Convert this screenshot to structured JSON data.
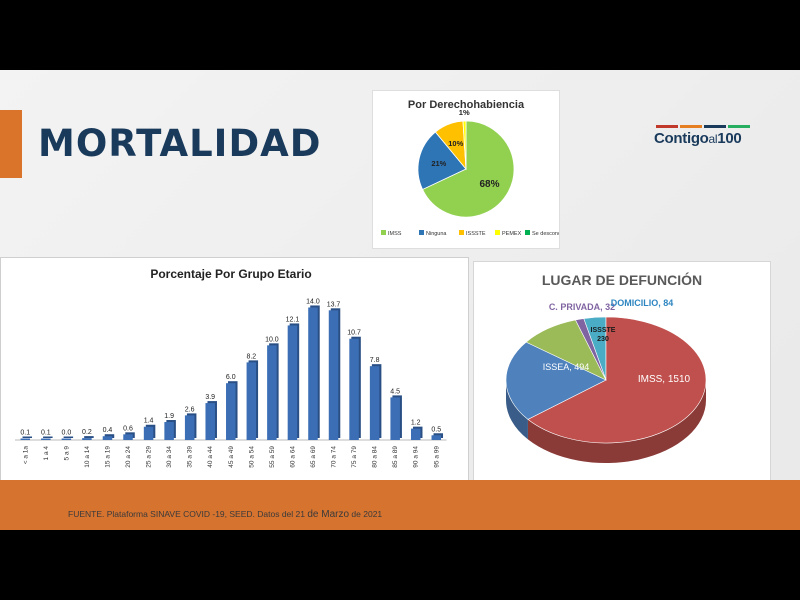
{
  "slide": {
    "title": "MORTALIDAD",
    "logo": {
      "part1": "Contigo",
      "part2": "al",
      "part3": "100",
      "bar_colors": [
        "#c0392b",
        "#e67e22",
        "#1a3a5c",
        "#27ae60",
        "#2e86c1"
      ]
    },
    "source": {
      "part1": "FUENTE. Plataforma SINAVE COVID -19, SEED. Datos del 21",
      "part2": "de Marzo",
      "part3": "de 2021"
    },
    "colors": {
      "accent": "#d9742a",
      "title": "#1a3a5c",
      "footer": "#d6732f"
    }
  },
  "chart_data": [
    {
      "type": "pie",
      "title": "Por Derechohabiencia",
      "categories": [
        "IMSS",
        "Ninguna",
        "ISSSTE",
        "PEMEX",
        "Se desconoce"
      ],
      "values": [
        68,
        21,
        10,
        1,
        0
      ],
      "labels": [
        "68%",
        "21%",
        "10%",
        "1%",
        ""
      ],
      "colors": [
        "#92d050",
        "#2e75b6",
        "#ffc000",
        "#ffff00",
        "#00b050"
      ],
      "legend_position": "bottom"
    },
    {
      "type": "bar",
      "title": "Porcentaje Por Grupo Etario",
      "categories": [
        "< a 1a",
        "1 a 4",
        "5 a 9",
        "10 a 14",
        "15 a 19",
        "20 a 24",
        "25 a 29",
        "30 a 34",
        "35 a 39",
        "40 a 44",
        "45 a 49",
        "50 a 54",
        "55 a 59",
        "60 a 64",
        "65 a 69",
        "70 a 74",
        "75 a 79",
        "80 a 84",
        "85 a 89",
        "90 a 94",
        "95 a 99"
      ],
      "values": [
        0.1,
        0.1,
        0.0,
        0.2,
        0.4,
        0.6,
        1.4,
        1.9,
        2.6,
        3.9,
        6.0,
        8.2,
        10.0,
        12.1,
        14.0,
        13.7,
        10.7,
        7.8,
        4.5,
        1.2,
        0.5
      ],
      "labels": [
        "0.1",
        "0.1",
        "0.0",
        "0.2",
        "0.4",
        "0.6",
        "1.4",
        "1.9",
        "2.6",
        "3.9",
        "6.0",
        "8.2",
        "10.0",
        "12.1",
        "14.0",
        "13.7",
        "10.7",
        "7.8",
        "4.5",
        "1.2",
        "0.5"
      ],
      "ylim": [
        0,
        15
      ],
      "color": "#3b6eb5",
      "grid": false
    },
    {
      "type": "pie",
      "title": "LUGAR DE DEFUNCIÓN",
      "categories": [
        "IMSS",
        "ISSEA",
        "ISSSTE",
        "C. PRIVADA",
        "DOMICILIO"
      ],
      "values": [
        1510,
        494,
        230,
        32,
        84
      ],
      "labels": [
        "IMSS, 1510",
        "ISSEA, 494",
        "ISSSTE 230",
        "C. PRIVADA, 32",
        "DOMICILIO, 84"
      ],
      "colors": [
        "#c0504d",
        "#4f81bd",
        "#9bbb59",
        "#8064a2",
        "#4bacc6"
      ],
      "label_colors": [
        "#ffffff",
        "#ffffff",
        "#1a1a1a",
        "#8064a2",
        "#2e86c1"
      ],
      "style": "3d"
    }
  ]
}
